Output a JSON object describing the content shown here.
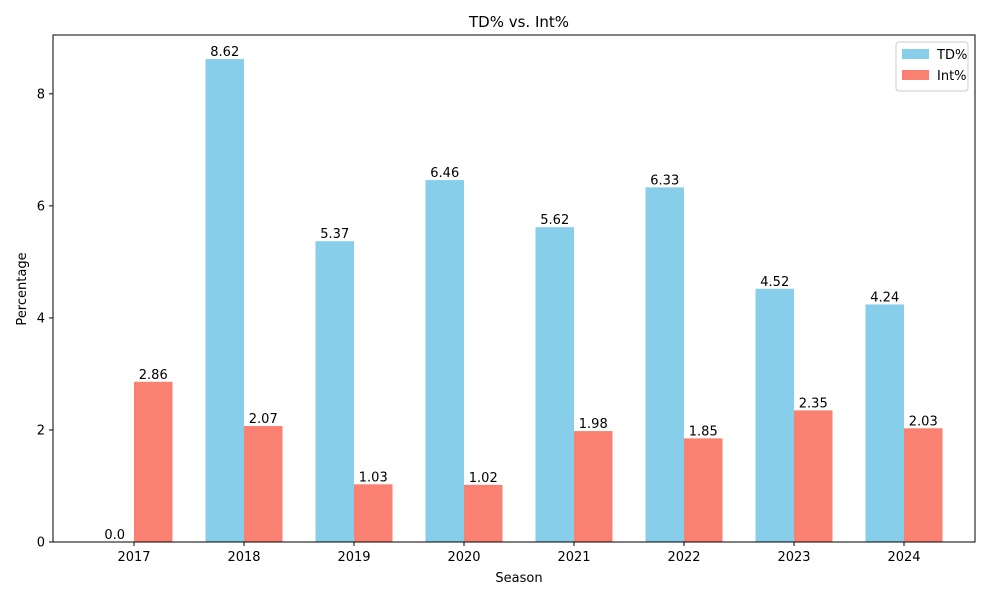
{
  "chart_data": {
    "type": "bar",
    "title": "TD% vs. Int%",
    "xlabel": "Season",
    "ylabel": "Percentage",
    "categories": [
      "2017",
      "2018",
      "2019",
      "2020",
      "2021",
      "2022",
      "2023",
      "2024"
    ],
    "series": [
      {
        "name": "TD%",
        "values": [
          0.0,
          8.62,
          5.37,
          6.46,
          5.62,
          6.33,
          4.52,
          4.24
        ],
        "labels": [
          "0.0",
          "8.62",
          "5.37",
          "6.46",
          "5.62",
          "6.33",
          "4.52",
          "4.24"
        ],
        "color": "#87CEEB"
      },
      {
        "name": "Int%",
        "values": [
          2.86,
          2.07,
          1.03,
          1.02,
          1.98,
          1.85,
          2.35,
          2.03
        ],
        "labels": [
          "2.86",
          "2.07",
          "1.03",
          "1.02",
          "1.98",
          "1.85",
          "2.35",
          "2.03"
        ],
        "color": "#FA8072"
      }
    ],
    "ylim": [
      0,
      9.05
    ],
    "yticks": [
      "0",
      "2",
      "4",
      "6",
      "8"
    ],
    "legend_position": "top-right",
    "grid": false
  }
}
